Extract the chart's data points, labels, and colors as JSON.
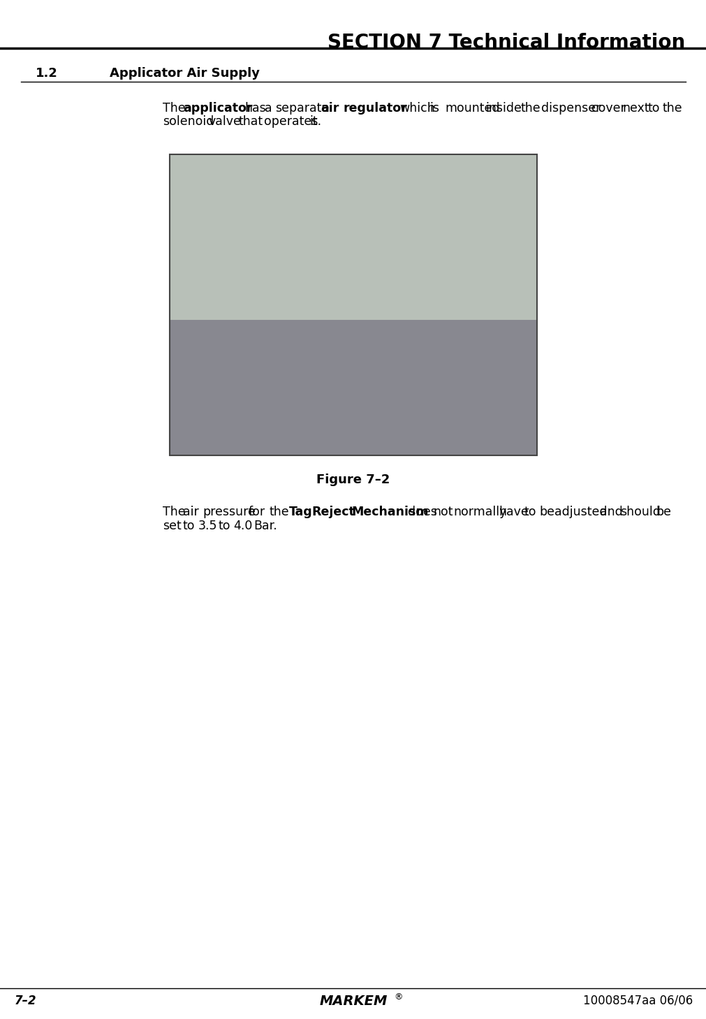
{
  "title": "SECTION 7 Technical Information",
  "section_label": "1.2",
  "section_title": "Applicator Air Supply",
  "para1_parts": [
    {
      "text": "The ",
      "bold": false
    },
    {
      "text": "applicator",
      "bold": true
    },
    {
      "text": " has a separate ",
      "bold": false
    },
    {
      "text": "air regulator",
      "bold": true
    },
    {
      "text": " which is mounted inside the dispenser cover next to the solenoid valve that operates it.",
      "bold": false
    }
  ],
  "figure_caption": "Figure 7–2",
  "para2_parts": [
    {
      "text": "The air pressure for the ",
      "bold": false
    },
    {
      "text": "Tag Reject Mechanism",
      "bold": true
    },
    {
      "text": " does not normally have to be adjusted and should be set to 3.5 to 4.0 Bar.",
      "bold": false
    }
  ],
  "footer_left": "7–2",
  "footer_center": "MARKEM",
  "footer_right": "10008547aa 06/06",
  "bg_color": "#ffffff",
  "text_color": "#000000",
  "image_placeholder_color": "#c8c8c8"
}
